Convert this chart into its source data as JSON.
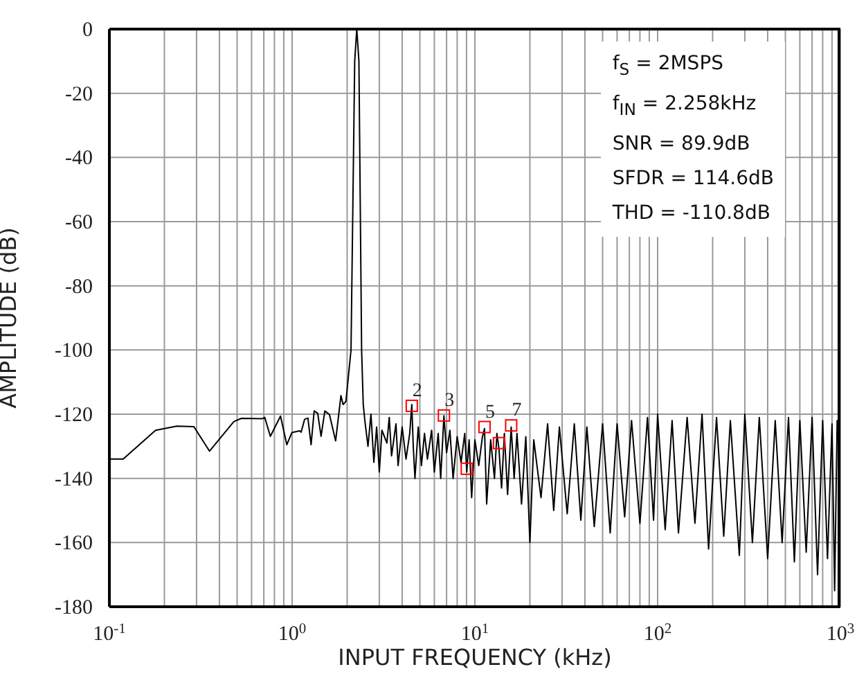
{
  "chart_data": {
    "type": "line",
    "xlabel": "INPUT FREQUENCY (kHz)",
    "ylabel": "AMPLITUDE (dB)",
    "log": "x",
    "grid": true,
    "xlim": [
      0.1,
      1000
    ],
    "ylim": [
      -180,
      0
    ],
    "xticks": [
      {
        "value": 0.1,
        "label": "10$^{-1}$"
      },
      {
        "value": 0.2,
        "label": null
      },
      {
        "value": 0.3,
        "label": null
      },
      {
        "value": 0.4,
        "label": null
      },
      {
        "value": 0.5,
        "label": null
      },
      {
        "value": 0.6,
        "label": null
      },
      {
        "value": 0.7,
        "label": null
      },
      {
        "value": 0.8,
        "label": null
      },
      {
        "value": 0.9,
        "label": null
      },
      {
        "value": 1,
        "label": "10$^{0}$"
      },
      {
        "value": 2,
        "label": null
      },
      {
        "value": 3,
        "label": null
      },
      {
        "value": 4,
        "label": null
      },
      {
        "value": 5,
        "label": null
      },
      {
        "value": 6,
        "label": null
      },
      {
        "value": 7,
        "label": null
      },
      {
        "value": 8,
        "label": null
      },
      {
        "value": 9,
        "label": null
      },
      {
        "value": 10,
        "label": "10$^{1}$"
      },
      {
        "value": 20,
        "label": null
      },
      {
        "value": 30,
        "label": null
      },
      {
        "value": 40,
        "label": null
      },
      {
        "value": 50,
        "label": null
      },
      {
        "value": 60,
        "label": null
      },
      {
        "value": 70,
        "label": null
      },
      {
        "value": 80,
        "label": null
      },
      {
        "value": 90,
        "label": null
      },
      {
        "value": 100,
        "label": "10$^{2}$"
      },
      {
        "value": 200,
        "label": null
      },
      {
        "value": 300,
        "label": null
      },
      {
        "value": 400,
        "label": null
      },
      {
        "value": 500,
        "label": null
      },
      {
        "value": 600,
        "label": null
      },
      {
        "value": 700,
        "label": null
      },
      {
        "value": 800,
        "label": null
      },
      {
        "value": 900,
        "label": null
      },
      {
        "value": 1000,
        "label": "10$^{3}$"
      }
    ],
    "yticks": [
      0,
      -20,
      -40,
      -60,
      -80,
      -100,
      -120,
      -140,
      -160,
      -180
    ],
    "series": [
      {
        "color": "#000000",
        "marker": "none",
        "line_style": "solid",
        "x": [
          0.1,
          0.119,
          0.179,
          0.234,
          0.29,
          0.353,
          0.48,
          0.528,
          0.688,
          0.708,
          0.76,
          0.864,
          0.935,
          0.998,
          1.1,
          1.12,
          1.17,
          1.22,
          1.27,
          1.32,
          1.38,
          1.44,
          1.51,
          1.6,
          1.73,
          1.85,
          1.9,
          1.97,
          2.1,
          2.2,
          2.258,
          2.32,
          2.4,
          2.45,
          2.5,
          2.6,
          2.7,
          2.8,
          2.9,
          3.0,
          3.1,
          3.3,
          3.4,
          3.5,
          3.7,
          3.8,
          4.0,
          4.2,
          4.4,
          4.516,
          4.6,
          4.7,
          4.9,
          5.1,
          5.3,
          5.5,
          5.8,
          6.0,
          6.3,
          6.5,
          6.77,
          7.0,
          7.3,
          7.6,
          8.0,
          8.4,
          8.8,
          9.03,
          9.3,
          9.6,
          10,
          10.5,
          11,
          11.29,
          11.6,
          12.2,
          12.8,
          13.2,
          13.55,
          14,
          14.5,
          15.1,
          15.8,
          16.4,
          17,
          18,
          19,
          20,
          21,
          23,
          25,
          27,
          29,
          32,
          35,
          38,
          41,
          45,
          50,
          55,
          60,
          66,
          72,
          80,
          88,
          95,
          100,
          110,
          120,
          130,
          145,
          160,
          175,
          190,
          210,
          230,
          250,
          280,
          300,
          330,
          360,
          400,
          440,
          480,
          520,
          560,
          600,
          650,
          700,
          750,
          800,
          850,
          900,
          930,
          960,
          1000
        ],
        "values": [
          -134,
          -134,
          -125,
          -123.7,
          -123.9,
          -131.5,
          -122.3,
          -121.3,
          -121.4,
          -121,
          -126.9,
          -120.6,
          -129.5,
          -125.7,
          -125.2,
          -125.6,
          -121.6,
          -121.2,
          -129.5,
          -119,
          -119.7,
          -126.9,
          -119,
          -120.1,
          -128.3,
          -114.2,
          -117,
          -116,
          -100,
          -10,
          0,
          -10,
          -100,
          -117,
          -122,
          -130,
          -120,
          -135,
          -124,
          -138,
          -125,
          -129,
          -121,
          -133,
          -123,
          -136,
          -124,
          -134,
          -126,
          -117,
          -130,
          -140,
          -124,
          -136,
          -126,
          -134,
          -125,
          -138,
          -126,
          -140,
          -120.5,
          -132,
          -125,
          -140,
          -127,
          -135,
          -126,
          -138,
          -128,
          -146,
          -128,
          -136,
          -127,
          -124.5,
          -148,
          -128,
          -140,
          -126,
          -131,
          -143,
          -126,
          -145,
          -124,
          -140,
          -126,
          -148,
          -127,
          -160,
          -128,
          -146,
          -123,
          -150,
          -124,
          -151,
          -123,
          -153,
          -124,
          -155,
          -123,
          -157,
          -123,
          -152,
          -122,
          -154,
          -121,
          -153,
          -120,
          -156,
          -122,
          -157,
          -121,
          -154,
          -120,
          -162,
          -121,
          -158,
          -122,
          -164,
          -120,
          -160,
          -121,
          -165,
          -122,
          -160,
          -121,
          -166,
          -122,
          -163,
          -121,
          -170,
          -122,
          -165,
          -123,
          -175,
          -122,
          -138
        ]
      },
      {
        "type": "scatter",
        "color": "#ff0000",
        "marker": "square",
        "x": [
          4.516,
          6.77,
          9.03,
          11.29,
          13.55,
          15.8
        ],
        "values": [
          -117.4,
          -120.4,
          -137,
          -124,
          -129,
          -123.5
        ]
      }
    ],
    "annotations": [
      "f$_{S}$ = 2MSPS",
      "f$_{IN}$ = 2.258kHz",
      "SNR = 89.9dB",
      "SFDR = 114.6dB",
      "THD = -110.8dB",
      {
        "text": "2",
        "x": 4.516,
        "y": -117.4
      },
      {
        "text": "3",
        "x": 6.77,
        "y": -120.4
      },
      {
        "text": "5",
        "x": 11.29,
        "y": -124
      },
      {
        "text": "7",
        "x": 15.8,
        "y": -123.5
      }
    ]
  }
}
